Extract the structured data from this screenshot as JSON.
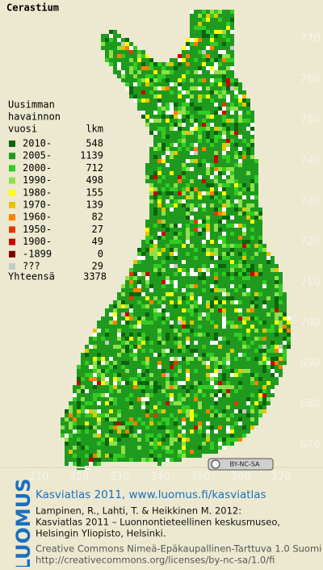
{
  "title": "Cerastium",
  "legend": {
    "header": [
      "Uusimman",
      "havainnon",
      "vuosi"
    ],
    "count_header": "lkm",
    "rows": [
      {
        "label": "2010-",
        "count": 548,
        "color": "#0b650b"
      },
      {
        "label": "2005-",
        "count": 1139,
        "color": "#1f9a1f"
      },
      {
        "label": "2000-",
        "count": 712,
        "color": "#33cc22"
      },
      {
        "label": "1990-",
        "count": 498,
        "color": "#8fe04a"
      },
      {
        "label": "1980-",
        "count": 155,
        "color": "#ffff00"
      },
      {
        "label": "1970-",
        "count": 139,
        "color": "#e6c400"
      },
      {
        "label": "1960-",
        "count": 82,
        "color": "#ff8000"
      },
      {
        "label": "1950-",
        "count": 27,
        "color": "#e03a00"
      },
      {
        "label": "1900-",
        "count": 49,
        "color": "#cc0000"
      },
      {
        "label": "-1899",
        "count": 0,
        "color": "#7a0000"
      },
      {
        "label": "???",
        "count": 29,
        "color": "#c8c8c8"
      }
    ],
    "total_label": "Yhteensä",
    "total": 3378
  },
  "map": {
    "yticks": [
      770,
      760,
      750,
      740,
      730,
      720,
      710,
      700,
      690,
      680,
      670
    ],
    "xticks": [
      310,
      320,
      330,
      340,
      350,
      360,
      370
    ]
  },
  "license_badge": "BY-NC-SA",
  "footer": {
    "logo": "LUOMUS",
    "headline": "Kasviatlas 2011, www.luomus.fi/kasviatlas",
    "citation": [
      "Lampinen, R., Lahti, T. & Heikkinen M. 2012:",
      "Kasviatlas 2011 – Luonnontieteellinen keskusmuseo,",
      "Helsingin Yliopisto, Helsinki."
    ],
    "license": "Creative Commons Nimeä-Epäkaupallinen-Tarttuva 1.0 Suomi",
    "license_url": "http://creativecommons.org/licenses/by-nc-sa/1.0/fi"
  }
}
